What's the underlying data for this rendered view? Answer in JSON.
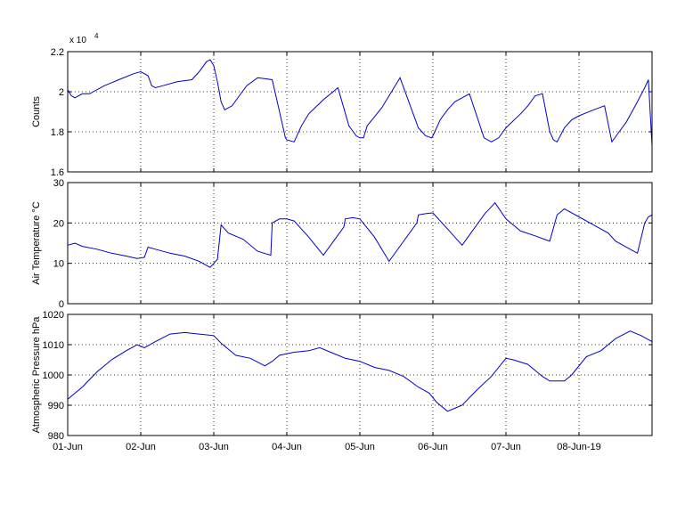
{
  "chart_data": [
    {
      "type": "line",
      "ylabel": "Counts",
      "ylim": [
        16000,
        22000
      ],
      "yticks": [
        16000,
        18000,
        20000,
        22000
      ],
      "ytick_labels": [
        "1.6",
        "1.8",
        "2",
        "2.2"
      ],
      "exponent_label": "x 10",
      "exponent_power": "4",
      "xlim": [
        0,
        8
      ],
      "grid": true,
      "line_color": "#0000cc",
      "series": [
        {
          "x": [
            0,
            0.05,
            0.1,
            0.2,
            0.3,
            0.5,
            0.7,
            0.9,
            1.0,
            1.1,
            1.15,
            1.2,
            1.3,
            1.5,
            1.7,
            1.8,
            1.9,
            1.95,
            2.0,
            2.05,
            2.1,
            2.15,
            2.25,
            2.35,
            2.45,
            2.6,
            2.8,
            2.95,
            2.98,
            3.0,
            3.1,
            3.2,
            3.3,
            3.5,
            3.7,
            3.85,
            3.95,
            4.0,
            4.05,
            4.1,
            4.3,
            4.55,
            4.8,
            4.9,
            4.98,
            5.0,
            5.1,
            5.2,
            5.3,
            5.5,
            5.7,
            5.8,
            5.9,
            6.0,
            6.2,
            6.3,
            6.4,
            6.5,
            6.6,
            6.65,
            6.7,
            6.8,
            6.9,
            7.0,
            7.2,
            7.35,
            7.45,
            7.55,
            7.65,
            7.8,
            7.9,
            7.95,
            8.0
          ],
          "y": [
            20100,
            19800,
            19700,
            19900,
            19900,
            20300,
            20600,
            20900,
            21000,
            20800,
            20300,
            20200,
            20300,
            20500,
            20600,
            21000,
            21500,
            21600,
            21300,
            20500,
            19500,
            19100,
            19300,
            19800,
            20300,
            20700,
            20600,
            18200,
            17700,
            17600,
            17500,
            18300,
            18900,
            19600,
            20200,
            18300,
            17800,
            17700,
            17700,
            18300,
            19200,
            20700,
            18200,
            17800,
            17700,
            17800,
            18600,
            19100,
            19500,
            19900,
            17700,
            17500,
            17700,
            18200,
            18900,
            19300,
            19800,
            19900,
            18000,
            17600,
            17500,
            18200,
            18600,
            18800,
            19100,
            19300,
            17500,
            18000,
            18500,
            19500,
            20200,
            20600,
            17300
          ]
        }
      ]
    },
    {
      "type": "line",
      "ylabel": "Air Temperature °C",
      "ylim": [
        0,
        30
      ],
      "yticks": [
        0,
        10,
        20,
        30
      ],
      "ytick_labels": [
        "0",
        "10",
        "20",
        "30"
      ],
      "xlim": [
        0,
        8
      ],
      "grid": true,
      "line_color": "#0000cc",
      "series": [
        {
          "x": [
            0,
            0.1,
            0.2,
            0.4,
            0.6,
            0.8,
            0.95,
            1.05,
            1.1,
            1.2,
            1.4,
            1.6,
            1.8,
            1.95,
            2.0,
            2.05,
            2.1,
            2.2,
            2.4,
            2.6,
            2.78,
            2.8,
            2.9,
            3.0,
            3.1,
            3.3,
            3.5,
            3.78,
            3.8,
            3.9,
            4.0,
            4.2,
            4.4,
            4.78,
            4.8,
            4.9,
            5.0,
            5.2,
            5.4,
            5.72,
            5.75,
            5.85,
            6.0,
            6.2,
            6.4,
            6.55,
            6.6,
            6.7,
            6.8,
            7.0,
            7.2,
            7.4,
            7.5,
            7.6,
            7.7,
            7.8,
            7.9,
            7.95,
            8.0
          ],
          "y": [
            14.5,
            15,
            14.2,
            13.5,
            12.5,
            11.8,
            11.2,
            11.5,
            14,
            13.5,
            12.5,
            11.8,
            10.5,
            9,
            10,
            11,
            19.5,
            17.5,
            16,
            13,
            12,
            20,
            21,
            21,
            20.5,
            16.5,
            12,
            19,
            21,
            21.3,
            21,
            16.5,
            10.5,
            20,
            22,
            22.3,
            22.5,
            18.5,
            14.5,
            22.5,
            23,
            25,
            21,
            18,
            16.8,
            15.8,
            15.5,
            22,
            23.5,
            21.5,
            19.5,
            17.5,
            15.5,
            14.5,
            13.5,
            12.5,
            20,
            21.5,
            22
          ]
        }
      ]
    },
    {
      "type": "line",
      "ylabel": "Atmospheric Pressure hPa",
      "ylim": [
        980,
        1020
      ],
      "yticks": [
        980,
        990,
        1000,
        1010,
        1020
      ],
      "ytick_labels": [
        "980",
        "990",
        "1000",
        "1010",
        "1020"
      ],
      "xlim": [
        0,
        8
      ],
      "xticks": [
        0,
        1,
        2,
        3,
        4,
        5,
        6,
        7
      ],
      "xtick_labels": [
        "01-Jun",
        "02-Jun",
        "03-Jun",
        "04-Jun",
        "05-Jun",
        "06-Jun",
        "07-Jun",
        "08-Jun-19"
      ],
      "grid": true,
      "line_color": "#0000cc",
      "series": [
        {
          "x": [
            0,
            0.2,
            0.4,
            0.6,
            0.8,
            0.95,
            1.05,
            1.2,
            1.4,
            1.6,
            1.8,
            2.0,
            2.1,
            2.3,
            2.5,
            2.7,
            2.8,
            2.9,
            3.1,
            3.3,
            3.45,
            3.6,
            3.8,
            4.0,
            4.2,
            4.4,
            4.6,
            4.8,
            4.95,
            5.05,
            5.2,
            5.4,
            5.6,
            5.8,
            6.0,
            6.1,
            6.3,
            6.5,
            6.6,
            6.8,
            6.9,
            7.1,
            7.3,
            7.5,
            7.7,
            7.85,
            8.0
          ],
          "y": [
            992,
            996,
            1001,
            1005,
            1008,
            1010,
            1009,
            1011,
            1013.5,
            1014,
            1013.5,
            1013,
            1010.5,
            1006.5,
            1005.5,
            1003,
            1004.5,
            1006.5,
            1007.5,
            1008,
            1009,
            1007.5,
            1005.5,
            1004.5,
            1002.5,
            1001.5,
            999.5,
            996,
            994,
            991,
            988,
            990,
            995,
            999.5,
            1005.5,
            1005,
            1003.5,
            999.5,
            998,
            998,
            1000,
            1006,
            1008,
            1012,
            1014.5,
            1013,
            1011
          ]
        }
      ]
    }
  ]
}
